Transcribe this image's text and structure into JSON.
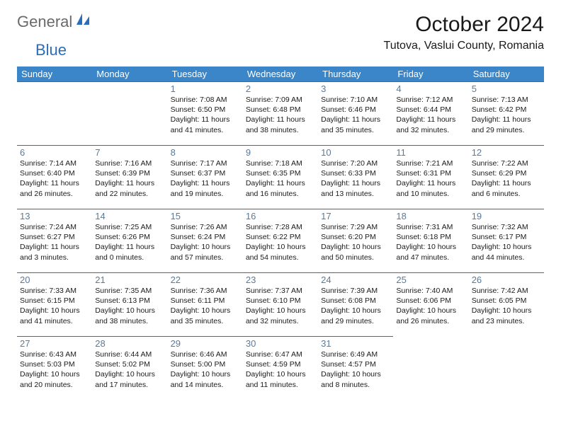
{
  "logo": {
    "word1": "General",
    "word2": "Blue"
  },
  "title": "October 2024",
  "location": "Tutova, Vaslui County, Romania",
  "weekdays": [
    "Sunday",
    "Monday",
    "Tuesday",
    "Wednesday",
    "Thursday",
    "Friday",
    "Saturday"
  ],
  "colors": {
    "header_bg": "#3a86c8",
    "header_text": "#ffffff",
    "border": "#2a6db8",
    "daynum": "#5a7a9a",
    "body_text": "#1a1a1a",
    "logo_gray": "#6a6a6a",
    "logo_blue": "#2a6db8"
  },
  "weeks": [
    [
      null,
      null,
      {
        "n": "1",
        "sunrise": "7:08 AM",
        "sunset": "6:50 PM",
        "dl1": "Daylight: 11 hours",
        "dl2": "and 41 minutes."
      },
      {
        "n": "2",
        "sunrise": "7:09 AM",
        "sunset": "6:48 PM",
        "dl1": "Daylight: 11 hours",
        "dl2": "and 38 minutes."
      },
      {
        "n": "3",
        "sunrise": "7:10 AM",
        "sunset": "6:46 PM",
        "dl1": "Daylight: 11 hours",
        "dl2": "and 35 minutes."
      },
      {
        "n": "4",
        "sunrise": "7:12 AM",
        "sunset": "6:44 PM",
        "dl1": "Daylight: 11 hours",
        "dl2": "and 32 minutes."
      },
      {
        "n": "5",
        "sunrise": "7:13 AM",
        "sunset": "6:42 PM",
        "dl1": "Daylight: 11 hours",
        "dl2": "and 29 minutes."
      }
    ],
    [
      {
        "n": "6",
        "sunrise": "7:14 AM",
        "sunset": "6:40 PM",
        "dl1": "Daylight: 11 hours",
        "dl2": "and 26 minutes."
      },
      {
        "n": "7",
        "sunrise": "7:16 AM",
        "sunset": "6:39 PM",
        "dl1": "Daylight: 11 hours",
        "dl2": "and 22 minutes."
      },
      {
        "n": "8",
        "sunrise": "7:17 AM",
        "sunset": "6:37 PM",
        "dl1": "Daylight: 11 hours",
        "dl2": "and 19 minutes."
      },
      {
        "n": "9",
        "sunrise": "7:18 AM",
        "sunset": "6:35 PM",
        "dl1": "Daylight: 11 hours",
        "dl2": "and 16 minutes."
      },
      {
        "n": "10",
        "sunrise": "7:20 AM",
        "sunset": "6:33 PM",
        "dl1": "Daylight: 11 hours",
        "dl2": "and 13 minutes."
      },
      {
        "n": "11",
        "sunrise": "7:21 AM",
        "sunset": "6:31 PM",
        "dl1": "Daylight: 11 hours",
        "dl2": "and 10 minutes."
      },
      {
        "n": "12",
        "sunrise": "7:22 AM",
        "sunset": "6:29 PM",
        "dl1": "Daylight: 11 hours",
        "dl2": "and 6 minutes."
      }
    ],
    [
      {
        "n": "13",
        "sunrise": "7:24 AM",
        "sunset": "6:27 PM",
        "dl1": "Daylight: 11 hours",
        "dl2": "and 3 minutes."
      },
      {
        "n": "14",
        "sunrise": "7:25 AM",
        "sunset": "6:26 PM",
        "dl1": "Daylight: 11 hours",
        "dl2": "and 0 minutes."
      },
      {
        "n": "15",
        "sunrise": "7:26 AM",
        "sunset": "6:24 PM",
        "dl1": "Daylight: 10 hours",
        "dl2": "and 57 minutes."
      },
      {
        "n": "16",
        "sunrise": "7:28 AM",
        "sunset": "6:22 PM",
        "dl1": "Daylight: 10 hours",
        "dl2": "and 54 minutes."
      },
      {
        "n": "17",
        "sunrise": "7:29 AM",
        "sunset": "6:20 PM",
        "dl1": "Daylight: 10 hours",
        "dl2": "and 50 minutes."
      },
      {
        "n": "18",
        "sunrise": "7:31 AM",
        "sunset": "6:18 PM",
        "dl1": "Daylight: 10 hours",
        "dl2": "and 47 minutes."
      },
      {
        "n": "19",
        "sunrise": "7:32 AM",
        "sunset": "6:17 PM",
        "dl1": "Daylight: 10 hours",
        "dl2": "and 44 minutes."
      }
    ],
    [
      {
        "n": "20",
        "sunrise": "7:33 AM",
        "sunset": "6:15 PM",
        "dl1": "Daylight: 10 hours",
        "dl2": "and 41 minutes."
      },
      {
        "n": "21",
        "sunrise": "7:35 AM",
        "sunset": "6:13 PM",
        "dl1": "Daylight: 10 hours",
        "dl2": "and 38 minutes."
      },
      {
        "n": "22",
        "sunrise": "7:36 AM",
        "sunset": "6:11 PM",
        "dl1": "Daylight: 10 hours",
        "dl2": "and 35 minutes."
      },
      {
        "n": "23",
        "sunrise": "7:37 AM",
        "sunset": "6:10 PM",
        "dl1": "Daylight: 10 hours",
        "dl2": "and 32 minutes."
      },
      {
        "n": "24",
        "sunrise": "7:39 AM",
        "sunset": "6:08 PM",
        "dl1": "Daylight: 10 hours",
        "dl2": "and 29 minutes."
      },
      {
        "n": "25",
        "sunrise": "7:40 AM",
        "sunset": "6:06 PM",
        "dl1": "Daylight: 10 hours",
        "dl2": "and 26 minutes."
      },
      {
        "n": "26",
        "sunrise": "7:42 AM",
        "sunset": "6:05 PM",
        "dl1": "Daylight: 10 hours",
        "dl2": "and 23 minutes."
      }
    ],
    [
      {
        "n": "27",
        "sunrise": "6:43 AM",
        "sunset": "5:03 PM",
        "dl1": "Daylight: 10 hours",
        "dl2": "and 20 minutes."
      },
      {
        "n": "28",
        "sunrise": "6:44 AM",
        "sunset": "5:02 PM",
        "dl1": "Daylight: 10 hours",
        "dl2": "and 17 minutes."
      },
      {
        "n": "29",
        "sunrise": "6:46 AM",
        "sunset": "5:00 PM",
        "dl1": "Daylight: 10 hours",
        "dl2": "and 14 minutes."
      },
      {
        "n": "30",
        "sunrise": "6:47 AM",
        "sunset": "4:59 PM",
        "dl1": "Daylight: 10 hours",
        "dl2": "and 11 minutes."
      },
      {
        "n": "31",
        "sunrise": "6:49 AM",
        "sunset": "4:57 PM",
        "dl1": "Daylight: 10 hours",
        "dl2": "and 8 minutes."
      },
      null,
      null
    ]
  ]
}
